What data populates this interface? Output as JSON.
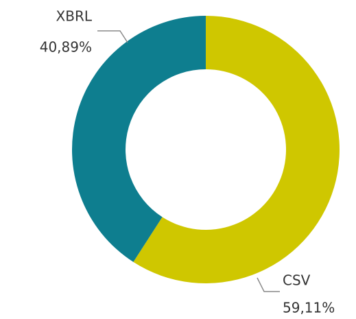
{
  "chart_data": {
    "type": "donut",
    "categories": [
      "CSV",
      "XBRL"
    ],
    "values": [
      59.11,
      40.89
    ],
    "value_labels": [
      "59,11%",
      "40,89%"
    ],
    "colors": [
      "#cfc700",
      "#0e7e8f"
    ]
  }
}
